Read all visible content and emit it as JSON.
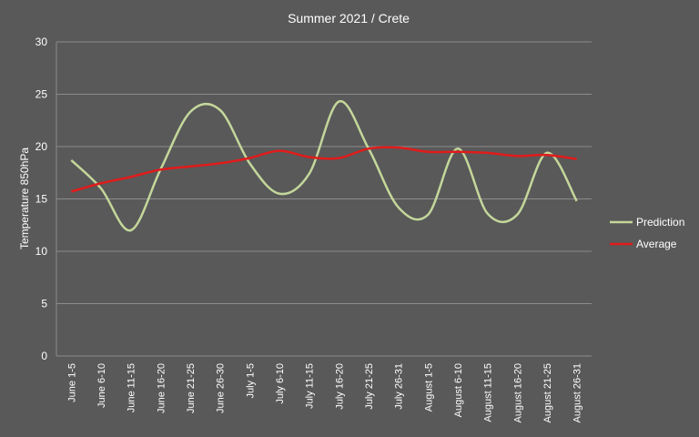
{
  "chart_data": {
    "type": "line",
    "title": "Summer 2021 / Crete",
    "ylabel": "Temperature 850hPa",
    "xlabel": "",
    "ylim": [
      0,
      30
    ],
    "yticks": [
      0,
      5,
      10,
      15,
      20,
      25,
      30
    ],
    "grid": true,
    "legend_position": "right",
    "categories": [
      "June 1-5",
      "June 6-10",
      "June 11-15",
      "June 16-20",
      "June 21-25",
      "June 26-30",
      "July 1-5",
      "July 6-10",
      "July 11-15",
      "July 16-20",
      "July 21-25",
      "July 26-31",
      "August 1-5",
      "August 6-10",
      "August 11-15",
      "August 16-20",
      "August 21-25",
      "August 26-31"
    ],
    "series": [
      {
        "name": "Prediction",
        "color": "#c4d79b",
        "values": [
          18.7,
          16.0,
          12.0,
          17.8,
          23.3,
          23.5,
          18.4,
          15.5,
          17.4,
          24.3,
          19.8,
          14.2,
          13.5,
          19.8,
          13.6,
          13.5,
          19.4,
          14.8
        ]
      },
      {
        "name": "Average",
        "color": "#e01b1b",
        "values": [
          15.7,
          16.5,
          17.1,
          17.8,
          18.1,
          18.4,
          18.9,
          19.6,
          19.0,
          18.9,
          19.8,
          19.9,
          19.5,
          19.5,
          19.4,
          19.1,
          19.2,
          18.8
        ]
      }
    ]
  }
}
